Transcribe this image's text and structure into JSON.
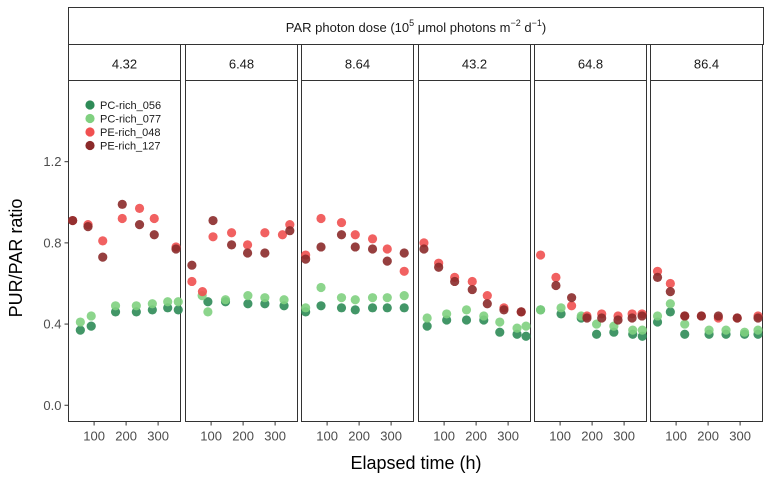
{
  "chart_data": {
    "type": "scatter",
    "facet_header": {
      "prefix": "PAR photon dose (10",
      "exp1": "5",
      "middle": " μmol photons m",
      "exp2": "−2",
      "middle2": " d",
      "exp3": "−1",
      "suffix": ")"
    },
    "panels": [
      "4.32",
      "6.48",
      "8.64",
      "43.2",
      "64.8",
      "86.4"
    ],
    "xlabel": "Elapsed time (h)",
    "ylabel": "PUR/PAR ratio",
    "xlim": [
      20,
      370
    ],
    "ylim": [
      -0.08,
      1.6
    ],
    "xticks": [
      100,
      200,
      300
    ],
    "yticks": [
      0.0,
      0.4,
      0.8,
      1.2
    ],
    "ytick_labels": [
      "0.0",
      "0.4",
      "0.8",
      "1.2"
    ],
    "legend_position": "top-left",
    "series": [
      {
        "name": "PC-rich_056",
        "color": "#2e8b57",
        "points": [
          [
            [
              57,
              0.37
            ],
            [
              91,
              0.39
            ],
            [
              167,
              0.46
            ],
            [
              232,
              0.46
            ],
            [
              282,
              0.47
            ],
            [
              330,
              0.48
            ],
            [
              363,
              0.47
            ]
          ],
          [
            [
              90,
              0.51
            ],
            [
              145,
              0.51
            ],
            [
              215,
              0.5
            ],
            [
              268,
              0.5
            ],
            [
              328,
              0.49
            ]
          ],
          [
            [
              33,
              0.46
            ],
            [
              81,
              0.49
            ],
            [
              145,
              0.48
            ],
            [
              188,
              0.47
            ],
            [
              242,
              0.48
            ],
            [
              288,
              0.48
            ],
            [
              341,
              0.48
            ]
          ],
          [
            [
              47,
              0.39
            ],
            [
              108,
              0.42
            ],
            [
              170,
              0.42
            ],
            [
              224,
              0.42
            ],
            [
              274,
              0.36
            ],
            [
              328,
              0.35
            ],
            [
              356,
              0.34
            ]
          ],
          [
            [
              39,
              0.47
            ],
            [
              103,
              0.45
            ],
            [
              166,
              0.43
            ],
            [
              214,
              0.35
            ],
            [
              268,
              0.36
            ],
            [
              327,
              0.35
            ],
            [
              357,
              0.34
            ]
          ],
          [
            [
              42,
              0.41
            ],
            [
              82,
              0.46
            ],
            [
              127,
              0.35
            ],
            [
              203,
              0.35
            ],
            [
              256,
              0.35
            ],
            [
              314,
              0.35
            ],
            [
              356,
              0.35
            ]
          ]
        ]
      },
      {
        "name": "PC-rich_077",
        "color": "#80d080",
        "points": [
          [
            [
              57,
              0.41
            ],
            [
              91,
              0.44
            ],
            [
              167,
              0.49
            ],
            [
              232,
              0.49
            ],
            [
              282,
              0.5
            ],
            [
              330,
              0.51
            ],
            [
              363,
              0.51
            ]
          ],
          [
            [
              72,
              0.54
            ],
            [
              90,
              0.46
            ],
            [
              145,
              0.52
            ],
            [
              215,
              0.54
            ],
            [
              268,
              0.53
            ],
            [
              328,
              0.52
            ]
          ],
          [
            [
              33,
              0.48
            ],
            [
              81,
              0.58
            ],
            [
              145,
              0.53
            ],
            [
              188,
              0.52
            ],
            [
              242,
              0.53
            ],
            [
              288,
              0.53
            ],
            [
              341,
              0.54
            ]
          ],
          [
            [
              47,
              0.43
            ],
            [
              108,
              0.45
            ],
            [
              170,
              0.47
            ],
            [
              224,
              0.44
            ],
            [
              274,
              0.41
            ],
            [
              328,
              0.38
            ],
            [
              356,
              0.39
            ]
          ],
          [
            [
              39,
              0.47
            ],
            [
              103,
              0.48
            ],
            [
              166,
              0.44
            ],
            [
              214,
              0.4
            ],
            [
              268,
              0.39
            ],
            [
              327,
              0.37
            ],
            [
              357,
              0.37
            ]
          ],
          [
            [
              42,
              0.44
            ],
            [
              82,
              0.5
            ],
            [
              127,
              0.4
            ],
            [
              203,
              0.37
            ],
            [
              256,
              0.37
            ],
            [
              314,
              0.36
            ],
            [
              356,
              0.37
            ]
          ]
        ]
      },
      {
        "name": "PE-rich_048",
        "color": "#f05050",
        "points": [
          [
            [
              33,
              0.91
            ],
            [
              81,
              0.89
            ],
            [
              127,
              0.81
            ],
            [
              188,
              0.92
            ],
            [
              242,
              0.97
            ],
            [
              288,
              0.92
            ],
            [
              356,
              0.78
            ]
          ],
          [
            [
              40,
              0.61
            ],
            [
              73,
              0.56
            ],
            [
              106,
              0.83
            ],
            [
              164,
              0.85
            ],
            [
              214,
              0.79
            ],
            [
              268,
              0.85
            ],
            [
              323,
              0.84
            ],
            [
              346,
              0.89
            ]
          ],
          [
            [
              33,
              0.74
            ],
            [
              81,
              0.92
            ],
            [
              145,
              0.9
            ],
            [
              188,
              0.84
            ],
            [
              242,
              0.82
            ],
            [
              288,
              0.77
            ],
            [
              341,
              0.66
            ]
          ],
          [
            [
              37,
              0.8
            ],
            [
              83,
              0.7
            ],
            [
              133,
              0.63
            ],
            [
              188,
              0.61
            ],
            [
              235,
              0.54
            ],
            [
              287,
              0.48
            ],
            [
              341,
              0.46
            ]
          ],
          [
            [
              39,
              0.74
            ],
            [
              87,
              0.63
            ],
            [
              136,
              0.49
            ],
            [
              184,
              0.44
            ],
            [
              230,
              0.45
            ],
            [
              281,
              0.44
            ],
            [
              325,
              0.45
            ],
            [
              356,
              0.45
            ]
          ],
          [
            [
              42,
              0.66
            ],
            [
              82,
              0.6
            ],
            [
              127,
              0.44
            ],
            [
              179,
              0.44
            ],
            [
              232,
              0.43
            ],
            [
              291,
              0.43
            ],
            [
              356,
              0.44
            ]
          ]
        ]
      },
      {
        "name": "PE-rich_127",
        "color": "#8b2a2a",
        "points": [
          [
            [
              33,
              0.91
            ],
            [
              81,
              0.88
            ],
            [
              127,
              0.73
            ],
            [
              188,
              0.99
            ],
            [
              242,
              0.89
            ],
            [
              288,
              0.84
            ],
            [
              356,
              0.77
            ]
          ],
          [
            [
              40,
              0.69
            ],
            [
              106,
              0.91
            ],
            [
              164,
              0.79
            ],
            [
              214,
              0.75
            ],
            [
              268,
              0.75
            ],
            [
              346,
              0.86
            ]
          ],
          [
            [
              33,
              0.72
            ],
            [
              81,
              0.78
            ],
            [
              145,
              0.84
            ],
            [
              188,
              0.78
            ],
            [
              242,
              0.77
            ],
            [
              288,
              0.71
            ],
            [
              341,
              0.75
            ]
          ],
          [
            [
              37,
              0.77
            ],
            [
              83,
              0.68
            ],
            [
              133,
              0.61
            ],
            [
              188,
              0.57
            ],
            [
              235,
              0.5
            ],
            [
              287,
              0.47
            ],
            [
              341,
              0.46
            ]
          ],
          [
            [
              87,
              0.59
            ],
            [
              136,
              0.53
            ],
            [
              184,
              0.43
            ],
            [
              230,
              0.43
            ],
            [
              281,
              0.42
            ],
            [
              325,
              0.43
            ],
            [
              356,
              0.44
            ]
          ],
          [
            [
              42,
              0.63
            ],
            [
              82,
              0.56
            ],
            [
              127,
              0.44
            ],
            [
              179,
              0.44
            ],
            [
              232,
              0.44
            ],
            [
              291,
              0.43
            ],
            [
              356,
              0.43
            ]
          ]
        ]
      }
    ]
  }
}
